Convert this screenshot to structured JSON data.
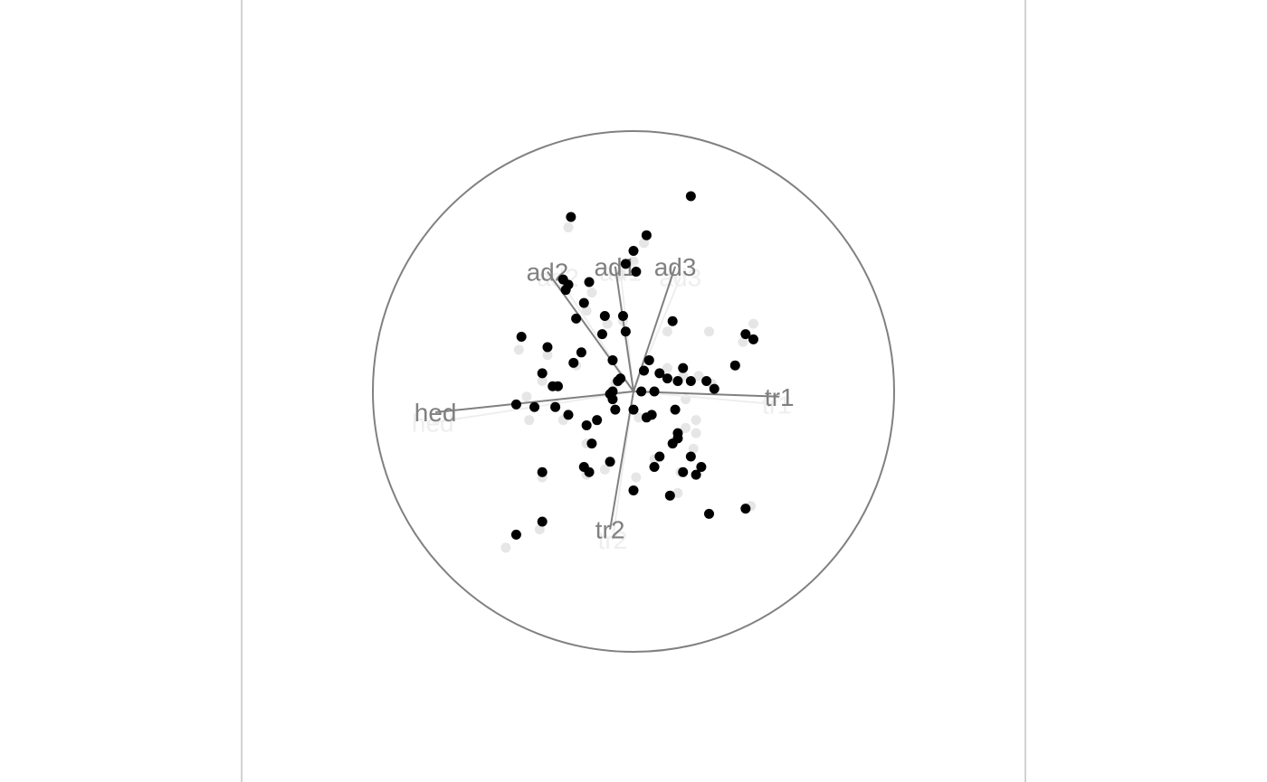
{
  "chart_data": {
    "type": "scatter",
    "title": "",
    "xlabel": "",
    "ylabel": "",
    "grid": false,
    "legend": "none",
    "circle_radius": 1.0,
    "colors": {
      "point_current": "#000000",
      "point_previous": "#e6e6e6",
      "axis_line": "#808080",
      "axis_label": "#808080",
      "axis_label_previous": "#eeeeee",
      "circle": "#808080",
      "panel_border": "#b3b3b3"
    },
    "axes": [
      {
        "name": "tr1",
        "x": 0.56,
        "y": -0.02
      },
      {
        "name": "tr2",
        "x": -0.09,
        "y": -0.53
      },
      {
        "name": "hed",
        "x": -0.76,
        "y": -0.08
      },
      {
        "name": "ad2",
        "x": -0.33,
        "y": 0.46
      },
      {
        "name": "ad1",
        "x": -0.07,
        "y": 0.48
      },
      {
        "name": "ad3",
        "x": 0.16,
        "y": 0.48
      }
    ],
    "axes_previous": [
      {
        "name": "tr1",
        "x": 0.55,
        "y": -0.05
      },
      {
        "name": "tr2",
        "x": -0.08,
        "y": -0.57
      },
      {
        "name": "hed",
        "x": -0.77,
        "y": -0.12
      },
      {
        "name": "ad2",
        "x": -0.29,
        "y": 0.44
      },
      {
        "name": "ad1",
        "x": -0.05,
        "y": 0.46
      },
      {
        "name": "ad3",
        "x": 0.18,
        "y": 0.44
      }
    ],
    "series": [
      {
        "values": [
          [
            -0.24,
            0.67
          ],
          [
            0.05,
            0.6
          ],
          [
            -0.0,
            0.54
          ],
          [
            -0.03,
            0.49
          ],
          [
            0.01,
            0.46
          ],
          [
            -0.27,
            0.43
          ],
          [
            -0.25,
            0.41
          ],
          [
            -0.26,
            0.39
          ],
          [
            -0.17,
            0.42
          ],
          [
            -0.19,
            0.34
          ],
          [
            -0.04,
            0.29
          ],
          [
            -0.11,
            0.29
          ],
          [
            0.15,
            0.27
          ],
          [
            -0.03,
            0.23
          ],
          [
            -0.12,
            0.22
          ],
          [
            -0.43,
            0.21
          ],
          [
            -0.33,
            0.17
          ],
          [
            -0.2,
            0.15
          ],
          [
            -0.23,
            0.11
          ],
          [
            0.06,
            0.12
          ],
          [
            0.19,
            0.09
          ],
          [
            0.04,
            0.08
          ],
          [
            0.1,
            0.07
          ],
          [
            0.13,
            0.05
          ],
          [
            0.17,
            0.04
          ],
          [
            0.22,
            0.04
          ],
          [
            0.28,
            0.04
          ],
          [
            -0.35,
            0.07
          ],
          [
            -0.31,
            0.02
          ],
          [
            -0.29,
            0.02
          ],
          [
            0.31,
            0.01
          ],
          [
            -0.05,
            0.05
          ],
          [
            -0.06,
            0.04
          ],
          [
            -0.08,
            0.0
          ],
          [
            0.03,
            0.0
          ],
          [
            -0.09,
            -0.01
          ],
          [
            -0.08,
            -0.03
          ],
          [
            0.08,
            -0.0
          ],
          [
            -0.45,
            -0.05
          ],
          [
            -0.38,
            -0.06
          ],
          [
            -0.3,
            -0.06
          ],
          [
            -0.07,
            -0.07
          ],
          [
            0.0,
            -0.07
          ],
          [
            0.16,
            -0.07
          ],
          [
            -0.25,
            -0.09
          ],
          [
            0.07,
            -0.09
          ],
          [
            0.05,
            -0.1
          ],
          [
            -0.14,
            -0.11
          ],
          [
            -0.18,
            -0.13
          ],
          [
            0.17,
            -0.16
          ],
          [
            0.17,
            -0.18
          ],
          [
            -0.16,
            -0.2
          ],
          [
            0.15,
            -0.2
          ],
          [
            0.1,
            -0.25
          ],
          [
            0.22,
            -0.25
          ],
          [
            -0.09,
            -0.27
          ],
          [
            0.08,
            -0.29
          ],
          [
            0.26,
            -0.29
          ],
          [
            -0.19,
            -0.29
          ],
          [
            -0.17,
            -0.31
          ],
          [
            -0.35,
            -0.31
          ],
          [
            0.19,
            -0.31
          ],
          [
            0.24,
            -0.32
          ],
          [
            -0.0,
            -0.38
          ],
          [
            0.14,
            -0.4
          ],
          [
            0.43,
            -0.45
          ],
          [
            0.29,
            -0.47
          ],
          [
            -0.35,
            -0.5
          ],
          [
            -0.45,
            -0.55
          ],
          [
            0.22,
            0.75
          ],
          [
            0.43,
            0.22
          ],
          [
            0.46,
            0.2
          ],
          [
            0.39,
            0.1
          ],
          [
            -0.08,
            0.12
          ],
          [
            -0.22,
            0.28
          ]
        ]
      },
      {
        "values": [
          [
            -0.25,
            0.63
          ],
          [
            0.04,
            0.57
          ],
          [
            0.0,
            0.5
          ],
          [
            -0.05,
            0.45
          ],
          [
            -0.27,
            0.4
          ],
          [
            -0.16,
            0.38
          ],
          [
            -0.18,
            0.31
          ],
          [
            -0.04,
            0.27
          ],
          [
            -0.1,
            0.26
          ],
          [
            0.13,
            0.23
          ],
          [
            0.29,
            0.23
          ],
          [
            -0.44,
            0.16
          ],
          [
            -0.33,
            0.14
          ],
          [
            -0.22,
            0.1
          ],
          [
            -0.35,
            0.04
          ],
          [
            0.13,
            0.09
          ],
          [
            0.25,
            0.06
          ],
          [
            0.3,
            0.03
          ],
          [
            0.19,
            0.06
          ],
          [
            -0.07,
            0.03
          ],
          [
            -0.41,
            -0.02
          ],
          [
            0.2,
            -0.03
          ],
          [
            -0.3,
            -0.05
          ],
          [
            -0.4,
            -0.11
          ],
          [
            -0.27,
            -0.11
          ],
          [
            0.02,
            -0.1
          ],
          [
            0.24,
            -0.11
          ],
          [
            0.2,
            -0.14
          ],
          [
            0.24,
            -0.16
          ],
          [
            -0.18,
            -0.2
          ],
          [
            0.23,
            -0.22
          ],
          [
            0.08,
            -0.26
          ],
          [
            -0.19,
            -0.29
          ],
          [
            -0.11,
            -0.3
          ],
          [
            0.26,
            -0.29
          ],
          [
            0.18,
            -0.31
          ],
          [
            -0.18,
            -0.32
          ],
          [
            0.01,
            -0.33
          ],
          [
            -0.35,
            -0.33
          ],
          [
            0.17,
            -0.39
          ],
          [
            0.45,
            -0.44
          ],
          [
            -0.36,
            -0.53
          ],
          [
            -0.49,
            -0.6
          ],
          [
            0.46,
            0.26
          ],
          [
            0.42,
            0.19
          ]
        ]
      }
    ]
  }
}
